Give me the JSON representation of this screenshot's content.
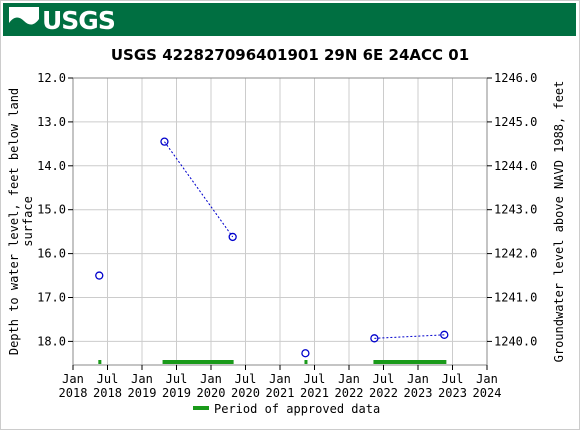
{
  "header": {
    "logo_text": "USGS",
    "logo_icon": "usgs-wave-icon"
  },
  "colors": {
    "banner": "#006f41",
    "series": "#0000cc",
    "approved": "#1a9a1a",
    "grid": "#cccccc"
  },
  "chart_data": {
    "type": "scatter",
    "title": "USGS 422827096401901 29N 6E 24ACC 01",
    "ylabel_left": "Depth to water level, feet below land surface",
    "ylabel_right": "Groundwater level above NAVD 1988, feet",
    "ylim_left": [
      12.0,
      18.5
    ],
    "left_ticks": [
      "12.0",
      "13.0",
      "14.0",
      "15.0",
      "16.0",
      "17.0",
      "18.0"
    ],
    "right_ticks": [
      "1246.0",
      "1245.0",
      "1244.0",
      "1243.0",
      "1242.0",
      "1241.0",
      "1240.0"
    ],
    "x_ticks": [
      {
        "line1": "Jan",
        "line2": "2018"
      },
      {
        "line1": "Jul",
        "line2": "2018"
      },
      {
        "line1": "Jan",
        "line2": "2019"
      },
      {
        "line1": "Jul",
        "line2": "2019"
      },
      {
        "line1": "Jan",
        "line2": "2020"
      },
      {
        "line1": "Jul",
        "line2": "2020"
      },
      {
        "line1": "Jan",
        "line2": "2021"
      },
      {
        "line1": "Jul",
        "line2": "2021"
      },
      {
        "line1": "Jan",
        "line2": "2022"
      },
      {
        "line1": "Jul",
        "line2": "2022"
      },
      {
        "line1": "Jan",
        "line2": "2023"
      },
      {
        "line1": "Jul",
        "line2": "2023"
      },
      {
        "line1": "Jan",
        "line2": "2024"
      }
    ],
    "points": [
      {
        "date": "2018-05-20",
        "depth": 16.5
      },
      {
        "date": "2019-04-30",
        "depth": 13.45
      },
      {
        "date": "2020-04-25",
        "depth": 15.62
      },
      {
        "date": "2021-05-15",
        "depth": 18.27
      },
      {
        "date": "2022-05-15",
        "depth": 17.93
      },
      {
        "date": "2023-05-20",
        "depth": 17.85
      }
    ],
    "connected_pairs": [
      [
        1,
        2
      ],
      [
        4,
        5
      ]
    ],
    "approved_periods": [
      {
        "start": "2018-05-15",
        "end": "2018-05-31"
      },
      {
        "start": "2019-04-20",
        "end": "2020-04-30"
      },
      {
        "start": "2021-05-10",
        "end": "2021-05-22"
      },
      {
        "start": "2022-05-10",
        "end": "2023-05-31"
      }
    ],
    "legend": "Period of approved data"
  }
}
